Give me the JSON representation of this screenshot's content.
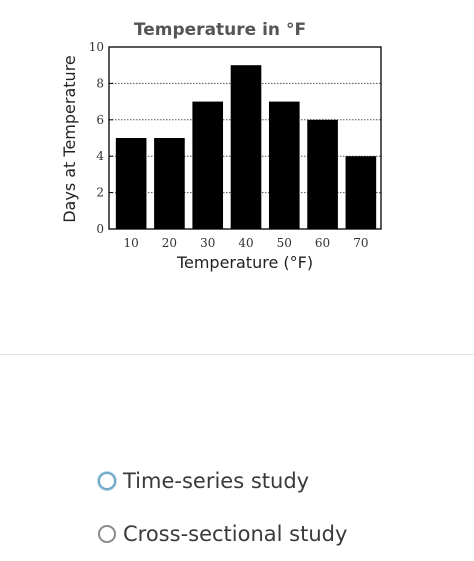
{
  "chart_data": {
    "type": "bar",
    "title": "Temperature in °F",
    "xlabel": "Temperature (°F)",
    "ylabel": "Days at Temperature",
    "categories": [
      "10",
      "20",
      "30",
      "40",
      "50",
      "60",
      "70"
    ],
    "values": [
      5,
      5,
      7,
      9,
      7,
      6,
      4
    ],
    "yticks": [
      "0",
      "2",
      "4",
      "6",
      "8",
      "10"
    ],
    "ylim": [
      0,
      10
    ],
    "grid": "dotted horizontal",
    "bar_color": "#000000"
  },
  "options": [
    {
      "label": "Time-series study",
      "focused": true
    },
    {
      "label": "Cross-sectional study",
      "focused": false
    }
  ]
}
